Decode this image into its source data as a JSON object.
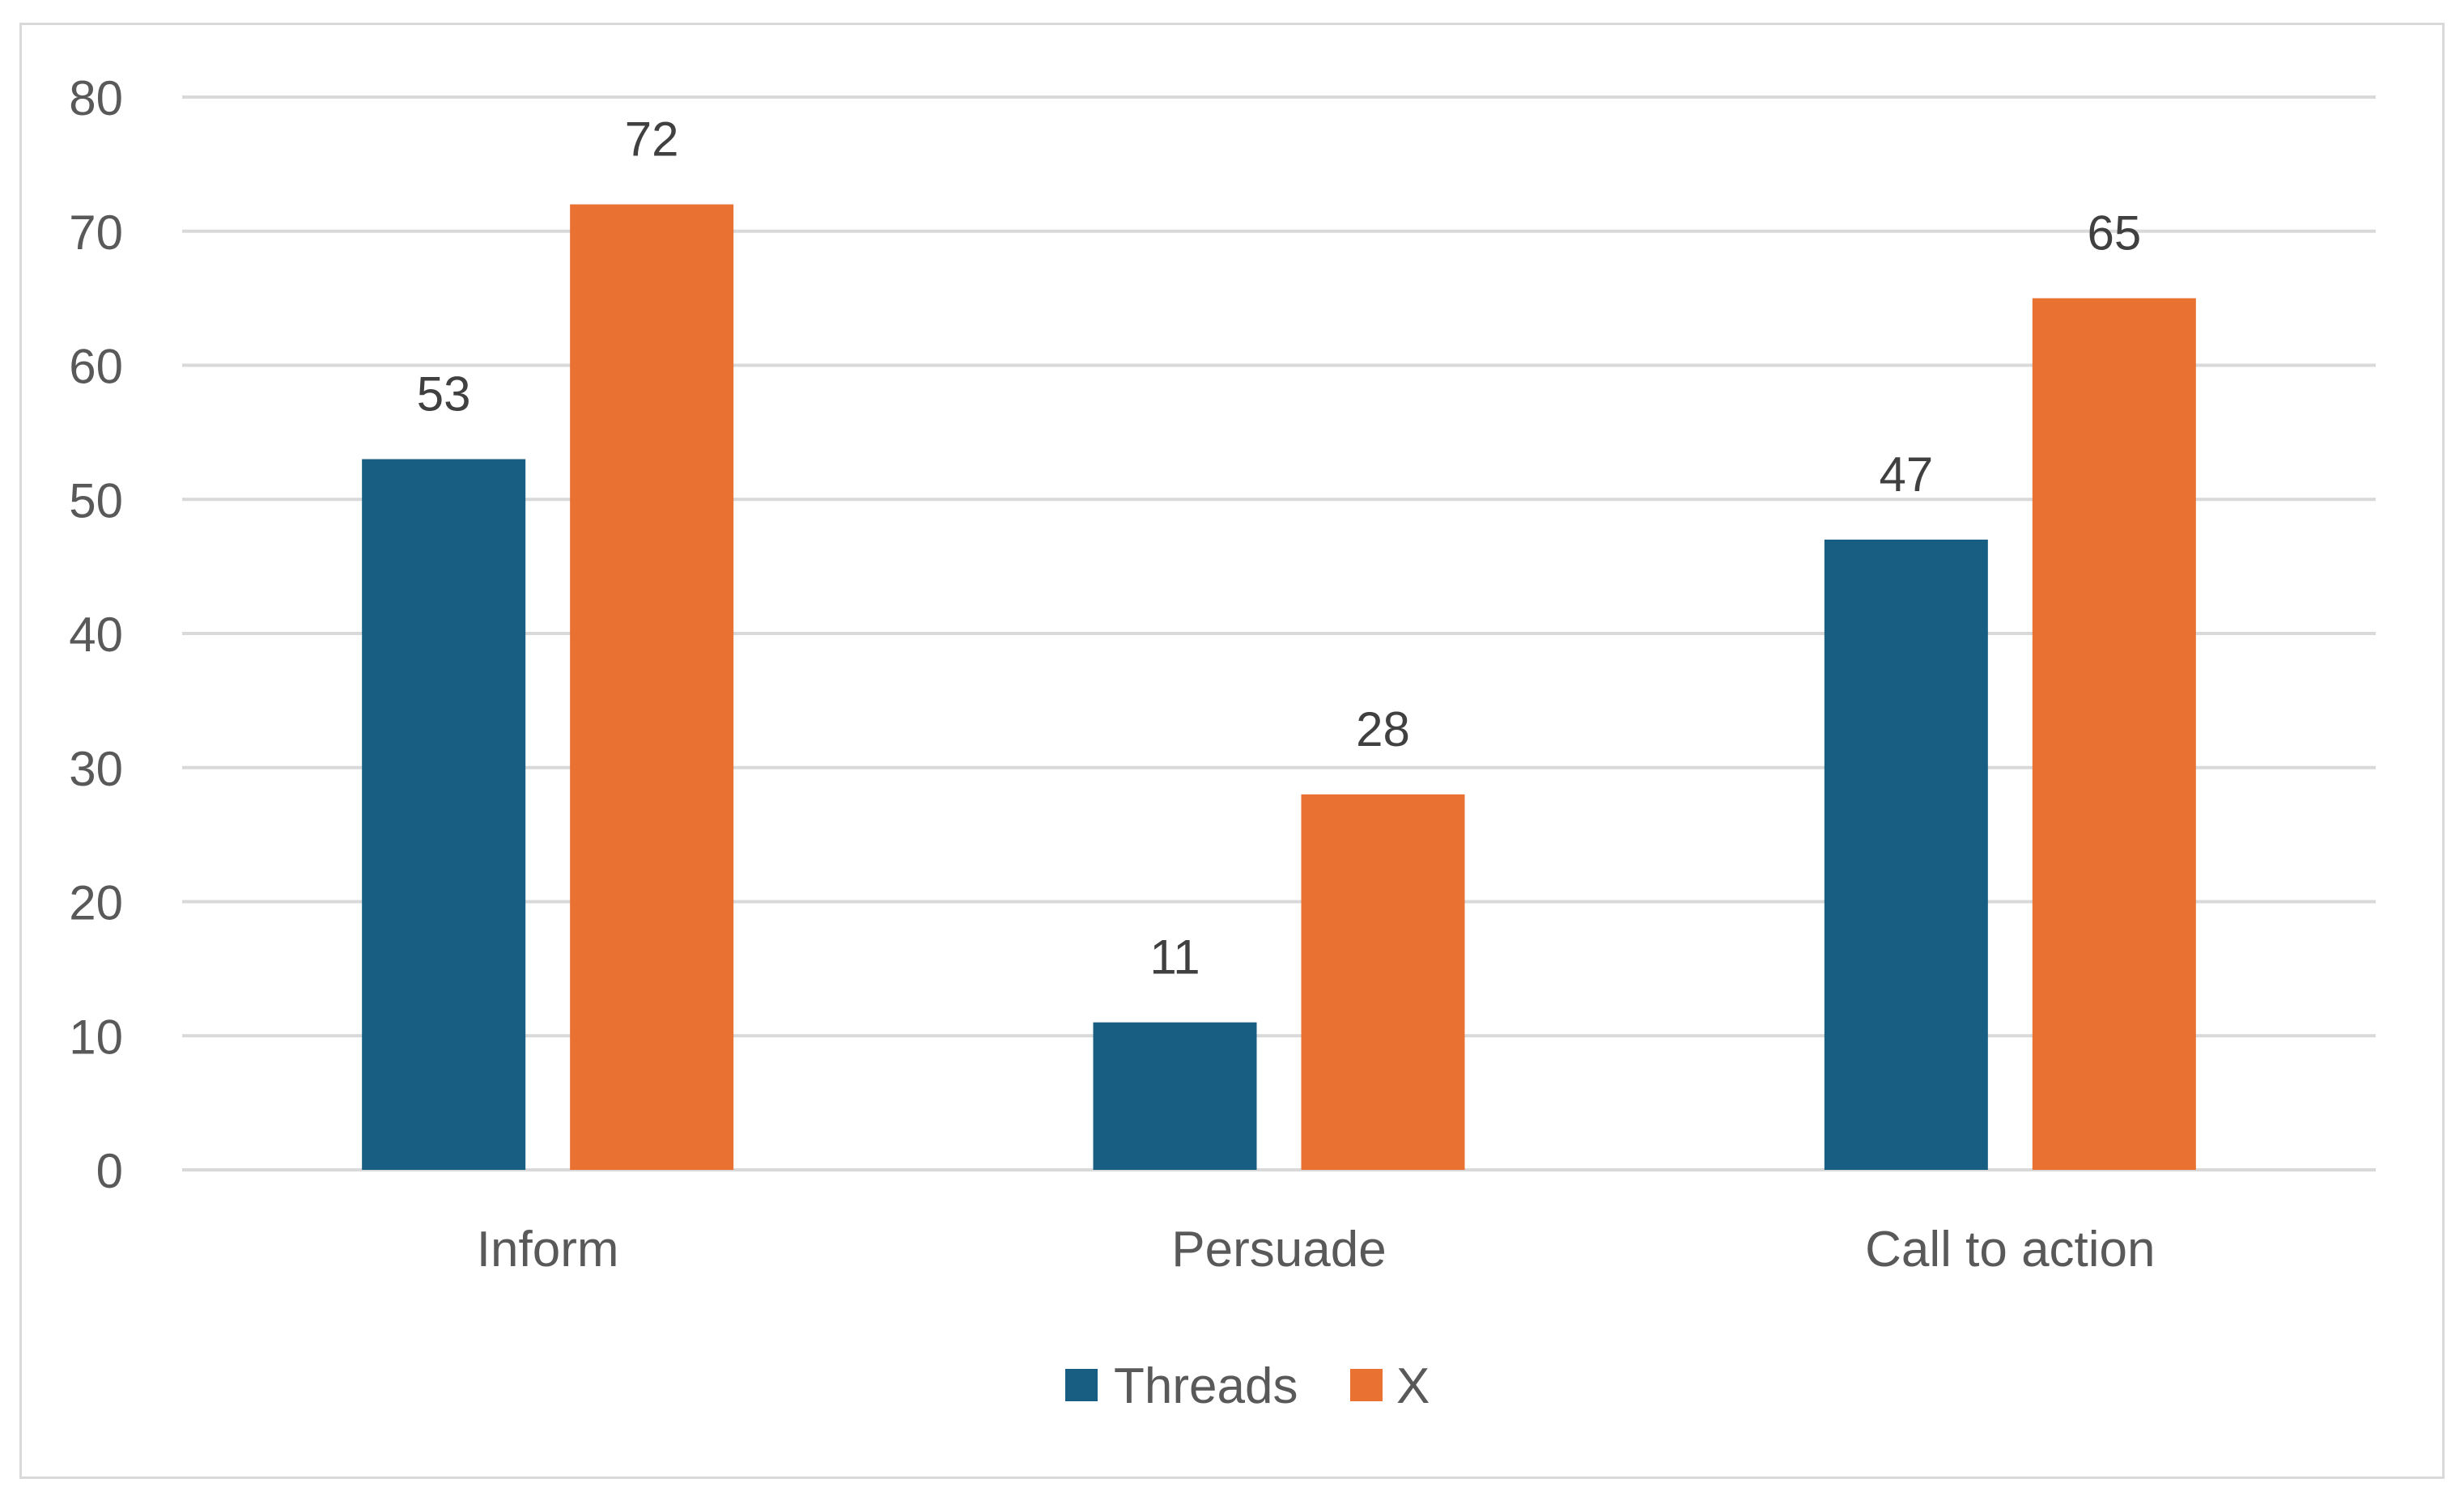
{
  "chart_data": {
    "type": "bar",
    "title": "",
    "xlabel": "",
    "ylabel": "",
    "categories": [
      "Inform",
      "Persuade",
      "Call to action"
    ],
    "series": [
      {
        "name": "Threads",
        "color": "#175E82",
        "values": [
          53,
          11,
          47
        ]
      },
      {
        "name": "X",
        "color": "#E97132",
        "values": [
          72,
          28,
          65
        ]
      }
    ],
    "ylim": [
      0,
      80
    ],
    "yticks": [
      "0",
      "10",
      "20",
      "30",
      "40",
      "50",
      "60",
      "70",
      "80"
    ],
    "grid": true,
    "data_labels": true,
    "legend_position": "bottom"
  }
}
